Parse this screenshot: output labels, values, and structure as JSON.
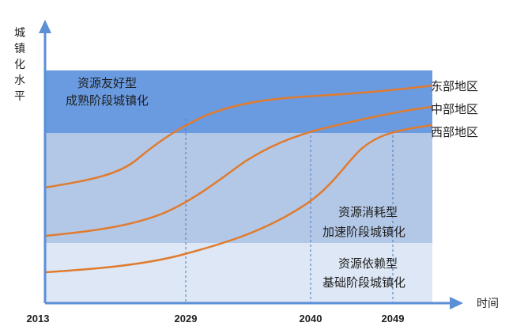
{
  "axes": {
    "y_title": [
      "城",
      "镇",
      "化",
      "水",
      "平"
    ],
    "x_title": "时间",
    "x_ticks": [
      "2013",
      "2029",
      "2040",
      "2049"
    ],
    "axis_color": "#5b8fd6"
  },
  "bands": [
    {
      "id": "top",
      "lines": [
        "资源友好型",
        "成熟阶段城镇化"
      ],
      "color": "#6a9be0"
    },
    {
      "id": "middle",
      "lines": [
        "资源消耗型",
        "加速阶段城镇化"
      ],
      "color": "#b3c8e6"
    },
    {
      "id": "bottom",
      "lines": [
        "资源依赖型",
        "基础阶段城镇化"
      ],
      "color": "#dde7f5"
    }
  ],
  "regions": [
    {
      "name": "东部地区",
      "color": "#e07b2e"
    },
    {
      "name": "中部地区",
      "color": "#e07b2e"
    },
    {
      "name": "西部地区",
      "color": "#e07b2e"
    }
  ]
}
